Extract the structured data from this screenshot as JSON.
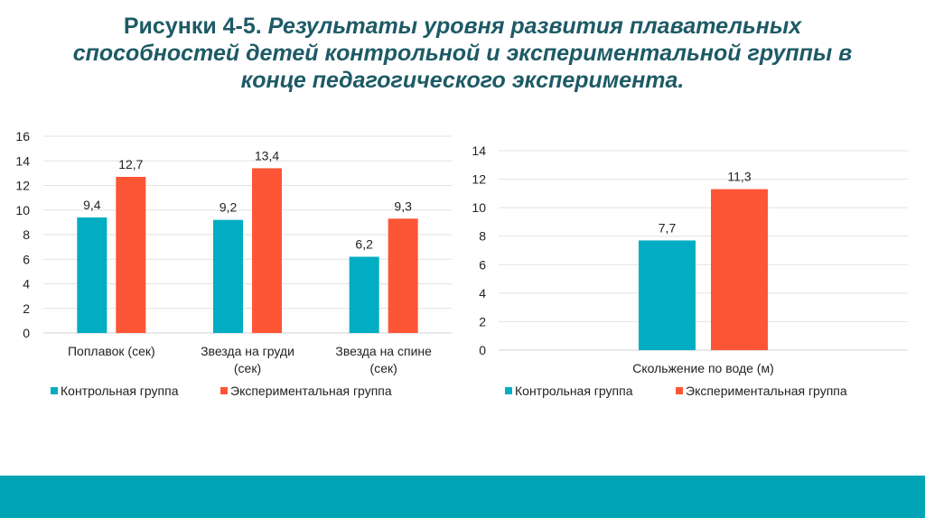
{
  "title": {
    "prefix": "Рисунки 4-5.",
    "line1": " Результаты уровня развития плавательных",
    "line2": "способностей детей контрольной и экспериментальной группы в",
    "line3": "конце педагогического эксперимента."
  },
  "colors": {
    "control": "#00adc3",
    "experimental": "#fd5636",
    "title": "#1d5a66",
    "band": "#00a5b5"
  },
  "chart_data": [
    {
      "type": "bar",
      "categories": [
        [
          "Поплавок (сек)"
        ],
        [
          "Звезда на груди",
          "(сек)"
        ],
        [
          "Звезда на спине",
          "(сек)"
        ]
      ],
      "series": [
        {
          "name": "Контрольная группа",
          "values": [
            9.4,
            9.2,
            6.2
          ],
          "labels": [
            "9,4",
            "9,2",
            "6,2"
          ]
        },
        {
          "name": "Экспериментальная группа",
          "values": [
            12.7,
            13.4,
            9.3
          ],
          "labels": [
            "12,7",
            "13,4",
            "9,3"
          ]
        }
      ],
      "ylim": [
        0,
        16
      ],
      "yticks": [
        0,
        2,
        4,
        6,
        8,
        10,
        12,
        14,
        16
      ],
      "grid": true,
      "legend": "bottom"
    },
    {
      "type": "bar",
      "categories": [
        [
          "Скольжение по воде (м)"
        ]
      ],
      "series": [
        {
          "name": "Контрольная группа",
          "values": [
            7.7
          ],
          "labels": [
            "7,7"
          ]
        },
        {
          "name": "Экспериментальная группа",
          "values": [
            11.3
          ],
          "labels": [
            "11,3"
          ]
        }
      ],
      "ylim": [
        0,
        14
      ],
      "yticks": [
        0,
        2,
        4,
        6,
        8,
        10,
        12,
        14
      ],
      "grid": true,
      "legend": "bottom"
    }
  ]
}
